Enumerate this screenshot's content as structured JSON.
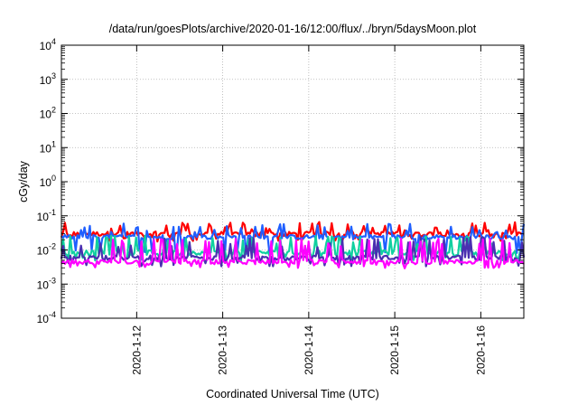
{
  "chart_data": {
    "type": "line",
    "title": "/data/run/goesPlots/archive/2020-01-16/12:00/flux/../bryn/5daysMoon.plot",
    "xlabel": "Coordinated Universal Time (UTC)",
    "ylabel": "cGy/day",
    "yscale": "log",
    "ylim": [
      0.0001,
      10000
    ],
    "yticks": [
      {
        "value": 0.0001,
        "base": "10",
        "exp": "-4"
      },
      {
        "value": 0.001,
        "base": "10",
        "exp": "-3"
      },
      {
        "value": 0.01,
        "base": "10",
        "exp": "-2"
      },
      {
        "value": 0.1,
        "base": "10",
        "exp": "-1"
      },
      {
        "value": 1,
        "base": "10",
        "exp": "0"
      },
      {
        "value": 10,
        "base": "10",
        "exp": "1"
      },
      {
        "value": 100,
        "base": "10",
        "exp": "2"
      },
      {
        "value": 1000,
        "base": "10",
        "exp": "3"
      },
      {
        "value": 10000,
        "base": "10",
        "exp": "4"
      }
    ],
    "xlim": [
      "2020-01-11 03:00",
      "2020-01-16 12:00"
    ],
    "xticks": [
      "2020-1-12",
      "2020-1-13",
      "2020-1-14",
      "2020-1-15",
      "2020-1-16"
    ],
    "grid": true,
    "series": [
      {
        "color": "#ff0000",
        "base": 0.03,
        "spike": 0.055,
        "spike_prob": 0.35,
        "dip": 0.022
      },
      {
        "color": "#1f5fff",
        "base": 0.024,
        "spike": 0.05,
        "spike_prob": 0.2,
        "dip": 0.009
      },
      {
        "color": "#10d0a0",
        "base": 0.0085,
        "spike": 0.022,
        "spike_prob": 0.3,
        "dip": 0.006
      },
      {
        "color": "#4a2fb0",
        "base": 0.006,
        "spike": 0.02,
        "spike_prob": 0.3,
        "dip": 0.004
      },
      {
        "color": "#ff00ff",
        "base": 0.0045,
        "spike": 0.018,
        "spike_prob": 0.35,
        "dip": 0.0035
      }
    ]
  }
}
